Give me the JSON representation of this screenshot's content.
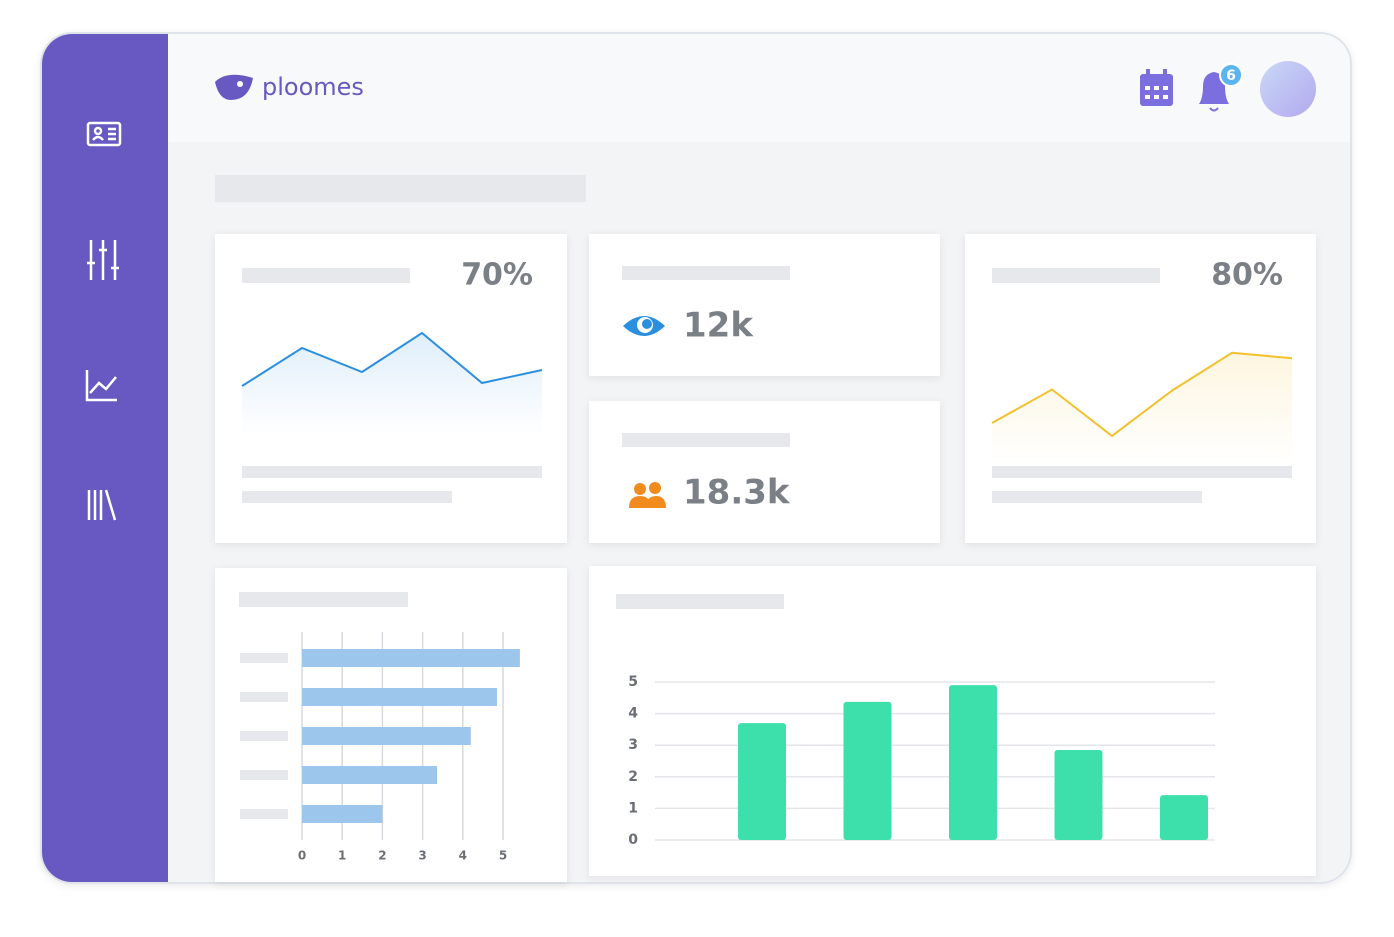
{
  "header": {
    "logo": "ploomes",
    "notifications": "6"
  },
  "stats": [
    {
      "value_label": "12k"
    },
    {
      "value_label": "18.3k"
    }
  ],
  "chart_data": [
    {
      "type": "line",
      "value_label": "70%",
      "values": [
        3.4,
        7.2,
        4.8,
        8.7,
        3.7,
        5.0
      ],
      "ylim": [
        0,
        10
      ],
      "color": "#2b8fe0"
    },
    {
      "type": "line",
      "value_label": "80%",
      "values": [
        2.5,
        5.6,
        1.3,
        5.5,
        9.0,
        8.5
      ],
      "ylim": [
        0,
        10
      ],
      "color": "#f2c12e"
    },
    {
      "type": "hbar",
      "categories": [
        null,
        null,
        null,
        null,
        null
      ],
      "values": [
        5.42,
        4.85,
        4.2,
        3.36,
        2.0
      ],
      "xlim": [
        0,
        5
      ],
      "xticks": [
        0,
        1,
        2,
        3,
        4,
        5
      ],
      "grid": true,
      "color": "#9dc6ec"
    },
    {
      "type": "bar",
      "categories": [
        null,
        null,
        null,
        null,
        null
      ],
      "values": [
        3.7,
        4.37,
        4.9,
        2.85,
        1.42
      ],
      "ylim": [
        0,
        5
      ],
      "yticks": [
        0,
        1,
        2,
        3,
        4,
        5
      ],
      "grid": true,
      "color": "#3ddfab"
    }
  ]
}
